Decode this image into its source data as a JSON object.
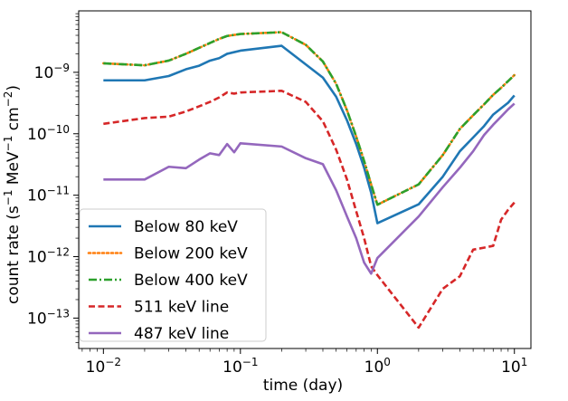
{
  "chart_data": {
    "type": "line",
    "xscale": "log",
    "yscale": "log",
    "xlim": [
      0.0066,
      13.2
    ],
    "ylim": [
      3.2e-14,
      1e-08
    ],
    "xlabel": "time (day)",
    "ylabel_main": "count rate (s",
    "ylabel_sup1": "−1",
    "ylabel_mid": " MeV",
    "ylabel_sup2": "−1",
    "ylabel_mid2": " cm",
    "ylabel_sup3": "−2",
    "ylabel_end": ")",
    "xticks": [
      {
        "value": 0.01,
        "base": "10",
        "exp": "−2"
      },
      {
        "value": 0.1,
        "base": "10",
        "exp": "−1"
      },
      {
        "value": 1,
        "base": "10",
        "exp": "0"
      },
      {
        "value": 10,
        "base": "10",
        "exp": "1"
      }
    ],
    "yticks": [
      {
        "value": 1e-13,
        "base": "10",
        "exp": "−13"
      },
      {
        "value": 1e-12,
        "base": "10",
        "exp": "−12"
      },
      {
        "value": 1e-11,
        "base": "10",
        "exp": "−11"
      },
      {
        "value": 1e-10,
        "base": "10",
        "exp": "−10"
      },
      {
        "value": 1e-09,
        "base": "10",
        "exp": "−9"
      }
    ],
    "legend_position": "lower-left",
    "series": [
      {
        "name": "Below 80 keV",
        "color": "#1f77b4",
        "style": "solid",
        "x": [
          0.01,
          0.02,
          0.03,
          0.04,
          0.05,
          0.06,
          0.07,
          0.08,
          0.1,
          0.2,
          0.4,
          0.5,
          0.6,
          0.7,
          0.8,
          0.9,
          1.0,
          2.0,
          3.0,
          4.0,
          5.0,
          6.0,
          7.0,
          8.0,
          9.0,
          10.0
        ],
        "y": [
          7.4e-10,
          7.4e-10,
          8.7e-10,
          1.12e-09,
          1.28e-09,
          1.55e-09,
          1.7e-09,
          2e-09,
          2.25e-09,
          2.7e-09,
          8.2e-10,
          4e-10,
          1.65e-10,
          6.8e-11,
          2.8e-11,
          1.1e-11,
          3.5e-12,
          7.1e-12,
          2e-11,
          5.2e-11,
          8.7e-11,
          1.33e-10,
          2.05e-10,
          2.6e-10,
          3.2e-10,
          4.2e-10
        ]
      },
      {
        "name": "Below 200 keV",
        "color": "#ff7f0e",
        "style": "dotted",
        "x": [
          0.01,
          0.02,
          0.03,
          0.04,
          0.05,
          0.06,
          0.07,
          0.08,
          0.1,
          0.2,
          0.3,
          0.4,
          0.5,
          0.6,
          0.7,
          0.8,
          0.9,
          1.0,
          2.0,
          3.0,
          4.0,
          5.0,
          6.0,
          7.0,
          8.0,
          9.0,
          10.0
        ],
        "y": [
          1.4e-09,
          1.3e-09,
          1.55e-09,
          2e-09,
          2.5e-09,
          3e-09,
          3.5e-09,
          3.9e-09,
          4.2e-09,
          4.5e-09,
          2.8e-09,
          1.5e-09,
          6.5e-10,
          2.4e-10,
          9e-11,
          3.6e-11,
          1.5e-11,
          7e-12,
          1.5e-11,
          4.5e-11,
          1.2e-10,
          2e-10,
          3e-10,
          4.3e-10,
          5.6e-10,
          7.2e-10,
          9e-10
        ]
      },
      {
        "name": "Below 400 keV",
        "color": "#2ca02c",
        "style": "dashdot",
        "x": [
          0.01,
          0.02,
          0.03,
          0.04,
          0.05,
          0.06,
          0.07,
          0.08,
          0.1,
          0.2,
          0.3,
          0.4,
          0.5,
          0.6,
          0.7,
          0.8,
          0.9,
          1.0,
          2.0,
          3.0,
          4.0,
          5.0,
          6.0,
          7.0,
          8.0,
          9.0,
          10.0
        ],
        "y": [
          1.4e-09,
          1.3e-09,
          1.55e-09,
          2e-09,
          2.5e-09,
          3e-09,
          3.5e-09,
          3.9e-09,
          4.2e-09,
          4.5e-09,
          2.8e-09,
          1.5e-09,
          6.5e-10,
          2.4e-10,
          9e-11,
          3.6e-11,
          1.5e-11,
          7e-12,
          1.5e-11,
          4.5e-11,
          1.2e-10,
          2e-10,
          3e-10,
          4.3e-10,
          5.6e-10,
          7.2e-10,
          9e-10
        ]
      },
      {
        "name": "511 keV line",
        "color": "#d62728",
        "style": "dashed",
        "x": [
          0.01,
          0.02,
          0.03,
          0.04,
          0.05,
          0.06,
          0.07,
          0.08,
          0.09,
          0.1,
          0.2,
          0.3,
          0.4,
          0.5,
          0.6,
          0.7,
          0.8,
          0.9,
          1.0,
          2.0,
          3.0,
          4.0,
          5.0,
          6.0,
          7.0,
          8.0,
          9.0,
          10.0
        ],
        "y": [
          1.45e-10,
          1.8e-10,
          1.9e-10,
          2.3e-10,
          2.8e-10,
          3.3e-10,
          3.9e-10,
          4.7e-10,
          4.5e-10,
          4.7e-10,
          5e-10,
          3.3e-10,
          1.6e-10,
          5.5e-11,
          1.8e-11,
          5.5e-12,
          2e-12,
          7e-13,
          5e-13,
          7e-14,
          3e-13,
          4.8e-13,
          1.3e-12,
          1.4e-12,
          1.5e-12,
          4e-12,
          5.8e-12,
          7.6e-12
        ]
      },
      {
        "name": "487 keV line",
        "color": "#9467bd",
        "style": "solid",
        "x": [
          0.01,
          0.02,
          0.03,
          0.04,
          0.05,
          0.06,
          0.07,
          0.08,
          0.09,
          0.1,
          0.2,
          0.3,
          0.4,
          0.5,
          0.6,
          0.7,
          0.8,
          0.9,
          1.0,
          2.0,
          3.0,
          4.0,
          5.0,
          6.0,
          7.0,
          8.0,
          9.0,
          10.0
        ],
        "y": [
          1.8e-11,
          1.8e-11,
          2.9e-11,
          2.75e-11,
          3.8e-11,
          4.8e-11,
          4.5e-11,
          6.8e-11,
          5e-11,
          7e-11,
          6.2e-11,
          4e-11,
          3.2e-11,
          1.2e-11,
          4.5e-12,
          2e-12,
          8e-13,
          5.3e-13,
          9.5e-13,
          4.5e-12,
          1.35e-11,
          2.8e-11,
          5.2e-11,
          9.5e-11,
          1.4e-10,
          1.9e-10,
          2.5e-10,
          3.1e-10
        ]
      }
    ]
  }
}
